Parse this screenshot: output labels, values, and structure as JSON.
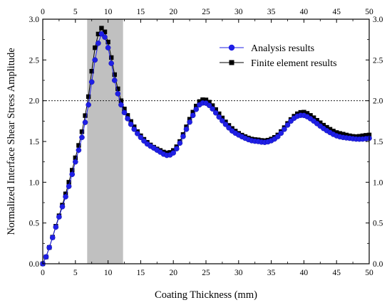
{
  "chart_data": {
    "type": "scatter",
    "xlabel": "Coating Thickness (mm)",
    "ylabel": "Normalized Interface Shear Stress Amplitude",
    "xlim": [
      0,
      50
    ],
    "ylim": [
      0,
      3.0
    ],
    "x_ticks": [
      "0",
      "5",
      "10",
      "15",
      "20",
      "25",
      "30",
      "35",
      "40",
      "45",
      "50"
    ],
    "y_ticks": [
      "0.0",
      "0.5",
      "1.0",
      "1.5",
      "2.0",
      "2.5",
      "3.0"
    ],
    "mirror_axes": true,
    "grid": false,
    "legend_position": "top-right",
    "reference_line": {
      "y": 2.0,
      "style": "dotted"
    },
    "highlight_band": {
      "x_start": 6.8,
      "x_end": 12.3,
      "color": "#c0c0c0"
    },
    "series": [
      {
        "name": "Analysis results",
        "marker": "circle",
        "color": "#1f1fe6",
        "x": [
          0,
          1,
          2,
          3,
          4,
          5,
          6,
          7,
          8,
          9,
          10,
          11,
          12,
          13,
          14,
          15,
          16,
          17,
          18,
          19,
          20,
          21,
          22,
          23,
          24,
          25,
          26,
          27,
          28,
          29,
          30,
          31,
          32,
          33,
          34,
          35,
          36,
          37,
          38,
          39,
          40,
          41,
          42,
          43,
          44,
          45,
          46,
          47,
          48,
          49,
          50
        ],
        "y": [
          0.0,
          0.2,
          0.45,
          0.7,
          0.95,
          1.25,
          1.55,
          1.95,
          2.5,
          2.82,
          2.65,
          2.25,
          1.95,
          1.78,
          1.65,
          1.55,
          1.47,
          1.42,
          1.37,
          1.33,
          1.36,
          1.48,
          1.65,
          1.82,
          1.95,
          1.97,
          1.9,
          1.8,
          1.71,
          1.63,
          1.58,
          1.54,
          1.51,
          1.5,
          1.49,
          1.51,
          1.56,
          1.65,
          1.75,
          1.81,
          1.82,
          1.78,
          1.72,
          1.66,
          1.61,
          1.57,
          1.55,
          1.54,
          1.53,
          1.53,
          1.54
        ]
      },
      {
        "name": "Finite element results",
        "marker": "square",
        "color": "#000000",
        "x": [
          0,
          1,
          2,
          3,
          4,
          5,
          6,
          7,
          8,
          9,
          10,
          11,
          12,
          13,
          14,
          15,
          16,
          17,
          18,
          19,
          20,
          21,
          22,
          23,
          24,
          25,
          26,
          27,
          28,
          29,
          30,
          31,
          32,
          33,
          34,
          35,
          36,
          37,
          38,
          39,
          40,
          41,
          42,
          43,
          44,
          45,
          46,
          47,
          48,
          49,
          50
        ],
        "y": [
          0.0,
          0.2,
          0.46,
          0.72,
          1.0,
          1.3,
          1.62,
          2.05,
          2.65,
          2.89,
          2.72,
          2.32,
          2.0,
          1.82,
          1.68,
          1.57,
          1.49,
          1.43,
          1.39,
          1.36,
          1.39,
          1.5,
          1.68,
          1.86,
          1.99,
          2.01,
          1.94,
          1.84,
          1.74,
          1.66,
          1.6,
          1.56,
          1.53,
          1.52,
          1.51,
          1.53,
          1.58,
          1.67,
          1.77,
          1.84,
          1.86,
          1.82,
          1.76,
          1.7,
          1.65,
          1.61,
          1.59,
          1.57,
          1.56,
          1.57,
          1.58
        ]
      }
    ]
  }
}
